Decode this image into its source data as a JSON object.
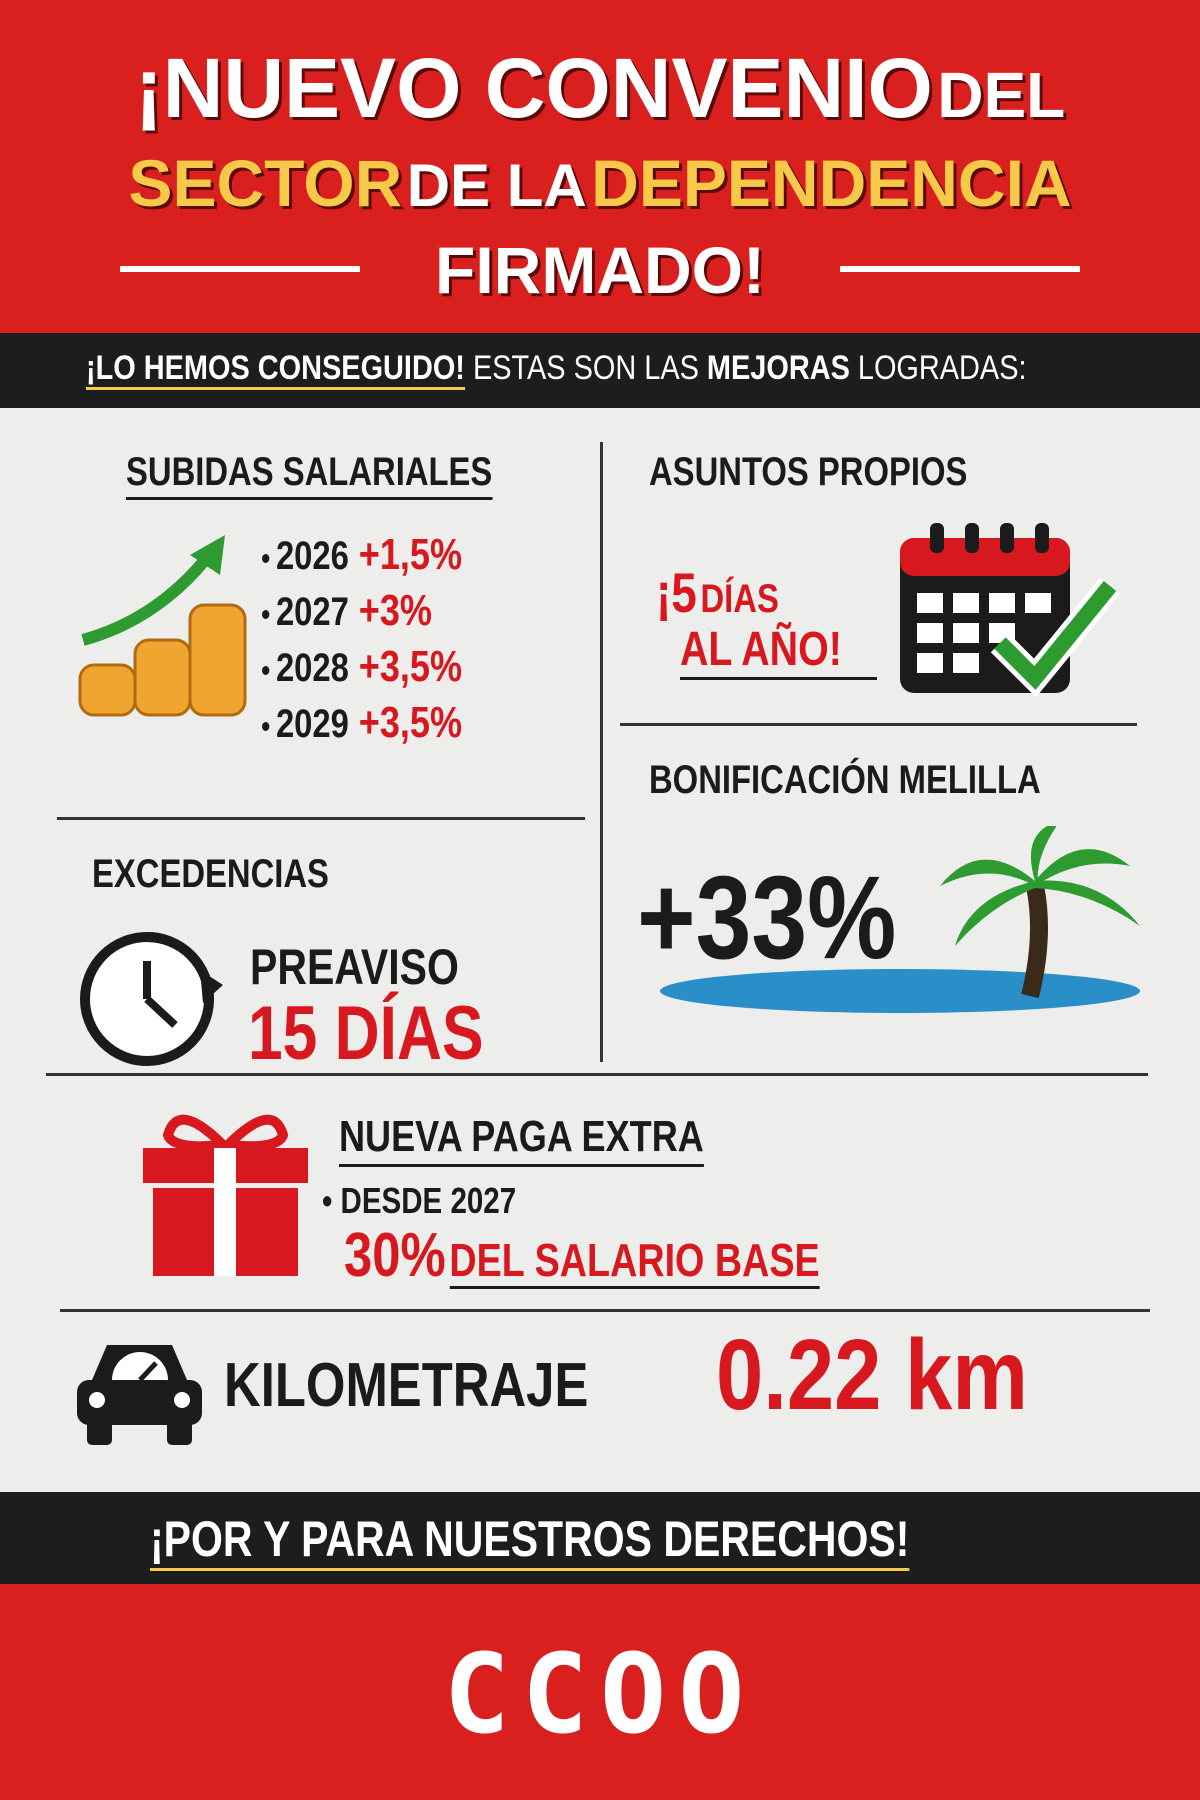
{
  "header": {
    "line1": [
      "¡NUEVO CONVENIO",
      "DEL"
    ],
    "line2": [
      "SECTOR",
      "DE LA",
      "DEPENDENCIA"
    ],
    "line3": "FIRMADO!"
  },
  "banner": [
    "¡LO HEMOS CONSEGUIDO!",
    "ESTAS SON LAS",
    "MEJORAS",
    "LOGRADAS:"
  ],
  "salary": {
    "title": "SUBIDAS SALARIALES",
    "items": [
      {
        "year": "2026",
        "raise": "+1,5%"
      },
      {
        "year": "2027",
        "raise": "+3%"
      },
      {
        "year": "2028",
        "raise": "+3,5%"
      },
      {
        "year": "2029",
        "raise": "+3,5%"
      }
    ]
  },
  "personal_days": {
    "title": "ASUNTOS PROPIOS",
    "line1": [
      "¡5",
      "DÍAS"
    ],
    "line2": "AL AÑO!"
  },
  "melilla": {
    "title": "BONIFICACIÓN MELILLA",
    "value": "+33%"
  },
  "leave": {
    "title": "EXCEDENCIAS",
    "line1": "PREAVISO",
    "line2": "15 DÍAS"
  },
  "extra_pay": {
    "title": "NUEVA PAGA EXTRA",
    "bullet": "DESDE 2027",
    "percent": "30%",
    "rest": "DEL SALARIO BASE"
  },
  "mileage": {
    "label": "KILOMETRAJE",
    "value": "0.22 km"
  },
  "footer": {
    "slogan": "¡POR Y PARA NUESTROS DERECHOS!",
    "logo": "CCOO"
  }
}
